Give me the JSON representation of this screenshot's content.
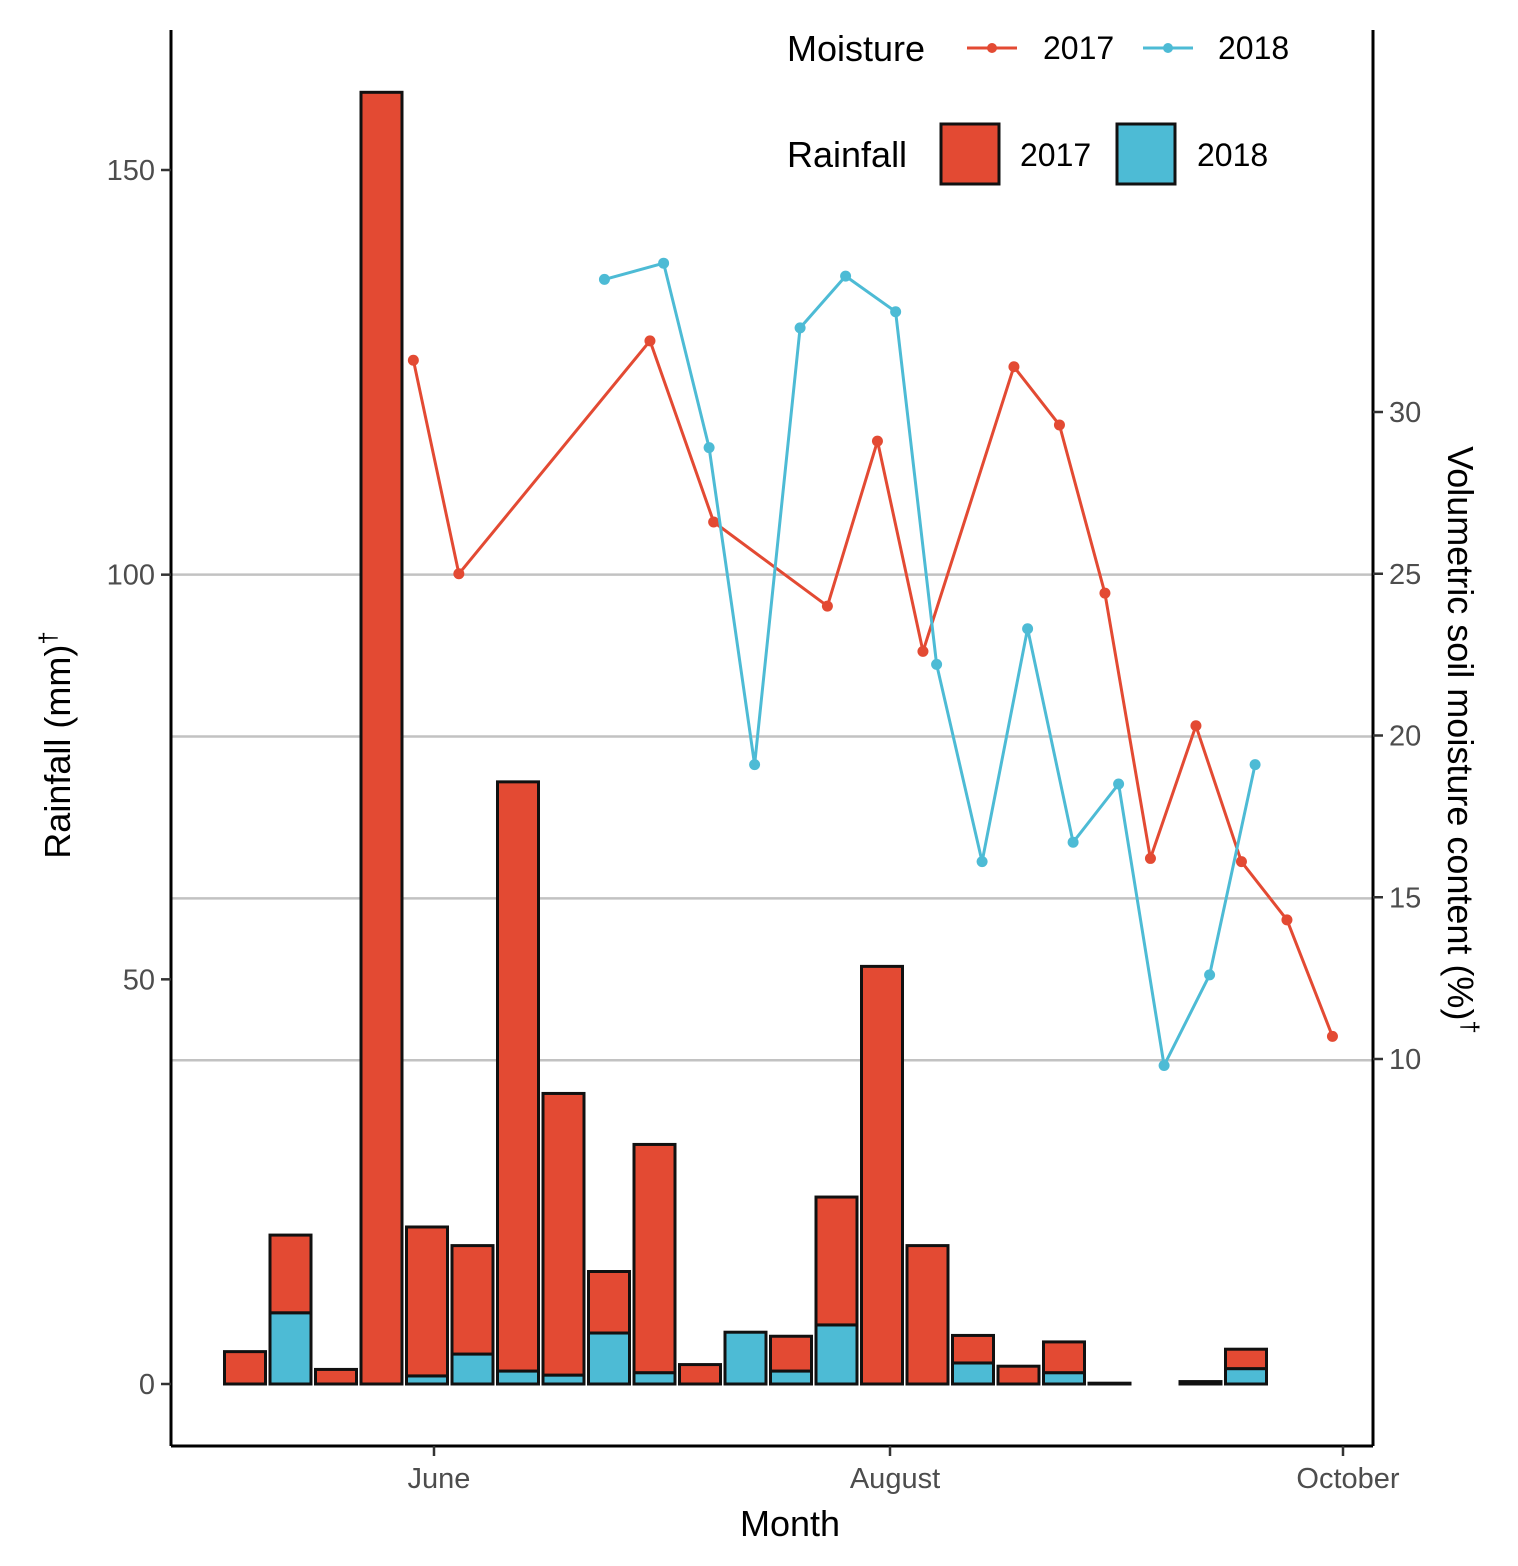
{
  "chart_data": {
    "type": "bar",
    "xlabel": "Month",
    "ylabel_left": "Rainfall (mm)",
    "ylabel_left_sup": "†",
    "ylabel_right": "Volumetric soil moisture content (%)",
    "ylabel_right_sup": "†",
    "left_axis": {
      "range": [
        -7.6,
        167.5
      ],
      "ticks": [
        0,
        50,
        100,
        150
      ]
    },
    "right_axis": {
      "ticks": [
        10,
        15,
        20,
        25,
        30
      ]
    },
    "x_axis": {
      "ticks": [
        "June",
        "August",
        "October"
      ]
    },
    "gridlines": [
      40,
      60,
      80,
      100
    ],
    "legend": {
      "moisture_title": "Moisture",
      "rainfall_title": "Rainfall",
      "year_2017": "2017",
      "year_2018": "2018"
    },
    "colors": {
      "y2017": "#e34a33",
      "y2018": "#4dbbd5"
    },
    "rainfall_weeks": [
      1,
      2,
      3,
      4,
      5,
      6,
      7,
      8,
      9,
      10,
      11,
      12,
      13,
      14,
      15,
      16,
      17,
      18,
      19,
      20,
      21,
      22,
      23,
      24
    ],
    "rainfall_2017": [
      4,
      9.6,
      1.8,
      159.6,
      18.4,
      13.4,
      72.8,
      34.8,
      7.6,
      28.2,
      2.4,
      0,
      4.3,
      15.8,
      51.6,
      17.1,
      3.4,
      2.2,
      3.8,
      0,
      0,
      0.3,
      2.4,
      0
    ],
    "rainfall_2018": [
      0,
      8.8,
      0,
      0,
      1,
      3.7,
      1.6,
      1.1,
      6.3,
      1.4,
      0,
      6.4,
      1.6,
      7.3,
      0,
      0,
      2.6,
      0,
      1.4,
      0.1,
      0,
      0,
      1.9,
      0
    ],
    "moisture_2017": {
      "x": [
        4.7,
        5.7,
        9.9,
        11.3,
        13.8,
        14.9,
        15.9,
        17.9,
        18.9,
        19.9,
        20.9,
        21.9,
        22.9,
        23.9,
        24.9
      ],
      "values": [
        31.6,
        25,
        32.2,
        26.6,
        24,
        29.1,
        22.6,
        31.4,
        29.6,
        24.4,
        16.2,
        20.3,
        16.1,
        14.3,
        10.7
      ]
    },
    "moisture_2018": {
      "x": [
        8.9,
        10.2,
        11.2,
        12.2,
        13.2,
        14.2,
        15.3,
        16.2,
        17.2,
        18.2,
        19.2,
        20.2,
        21.2,
        22.2,
        23.2
      ],
      "values": [
        34.1,
        34.6,
        28.9,
        19.1,
        32.6,
        34.2,
        33.1,
        22.2,
        16.1,
        23.3,
        16.7,
        18.5,
        9.8,
        12.6,
        19.1
      ]
    }
  }
}
